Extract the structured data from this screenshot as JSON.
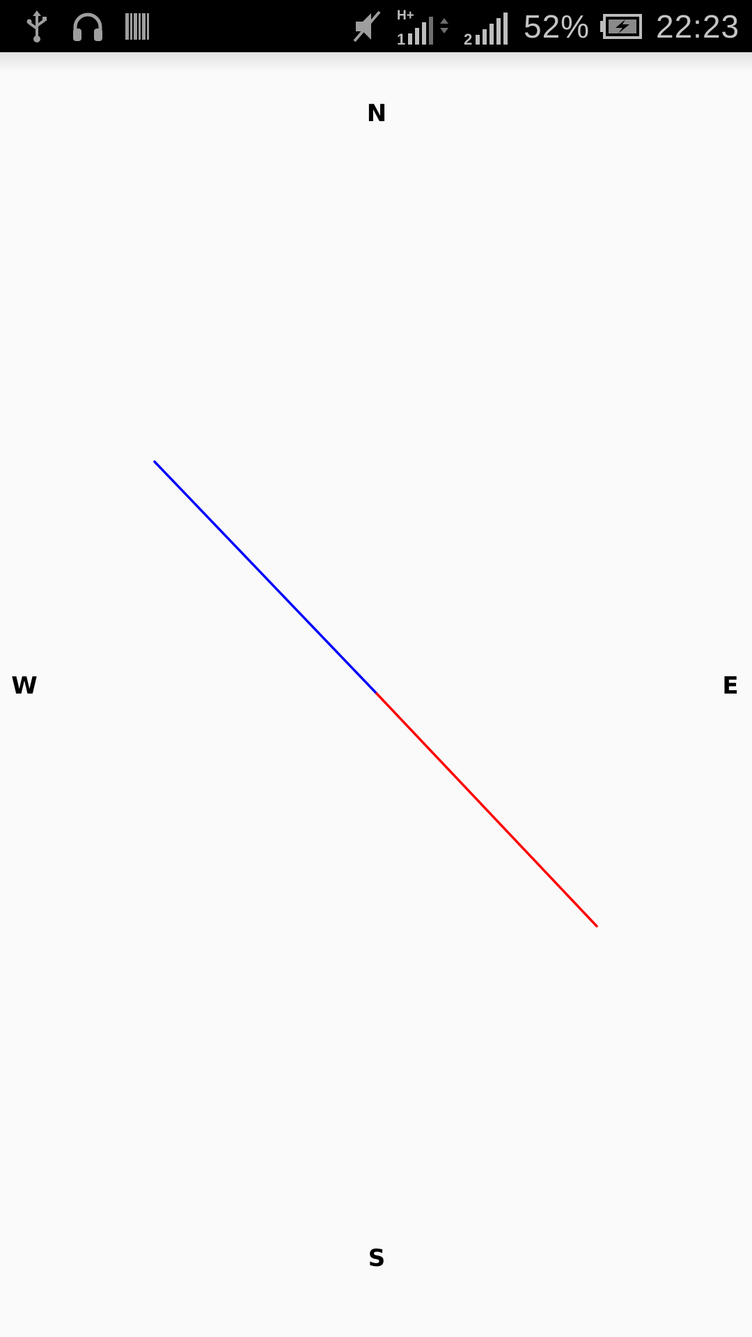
{
  "status_bar": {
    "left_icons": [
      "usb-icon",
      "headphones-icon",
      "barcode-icon"
    ],
    "right_icons": [
      "mute-icon",
      "signal-h-plus-icon",
      "signal-sim2-icon",
      "battery-charging-icon"
    ],
    "network_label": "H+",
    "sim_label": "2",
    "battery": "52%",
    "time": "22:23",
    "background": "#000000"
  },
  "compass": {
    "north": "N",
    "south": "S",
    "east": "E",
    "west": "W",
    "needle_north_color": "#0000ff",
    "needle_south_color": "#ff0000"
  }
}
